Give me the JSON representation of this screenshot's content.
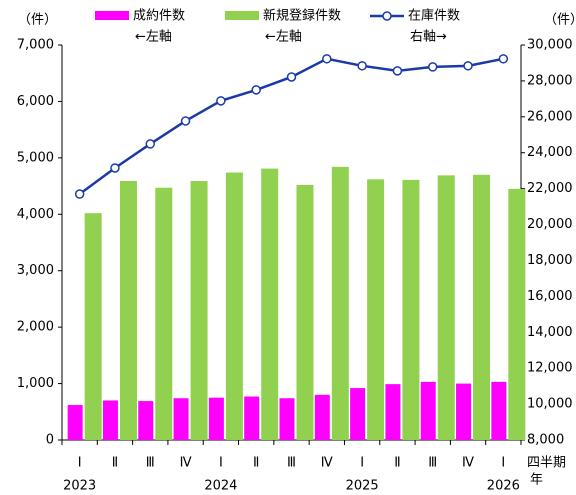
{
  "chart_data": {
    "type": "bar_line",
    "ylabel": "（件）",
    "y2label": "（件）",
    "xlabel": [
      "四半期",
      "年"
    ],
    "categories": [
      "Ⅰ",
      "Ⅱ",
      "Ⅲ",
      "Ⅳ",
      "Ⅰ",
      "Ⅱ",
      "Ⅲ",
      "Ⅳ",
      "Ⅰ",
      "Ⅱ",
      "Ⅲ",
      "Ⅳ",
      "Ⅰ"
    ],
    "years": [
      "2023",
      null,
      null,
      null,
      "2024",
      null,
      null,
      null,
      "2025",
      null,
      null,
      null,
      "2026"
    ],
    "series": [
      {
        "name": "成約件数",
        "axis_note": "←左軸",
        "type": "bar",
        "color": "#ff00ff",
        "values": [
          620,
          700,
          690,
          740,
          750,
          770,
          740,
          800,
          920,
          990,
          1030,
          1000,
          1030
        ]
      },
      {
        "name": "新規登録件数",
        "axis_note": "←左軸",
        "type": "bar",
        "color": "#92d050",
        "values": [
          4020,
          4590,
          4470,
          4590,
          4740,
          4810,
          4520,
          4840,
          4620,
          4610,
          4690,
          4700,
          4450
        ]
      },
      {
        "name": "在庫件数",
        "axis_note": "右軸→",
        "type": "line",
        "axis": "y2",
        "color": "#1a3aa8",
        "values": [
          21700,
          23150,
          24490,
          25770,
          26890,
          27500,
          28220,
          29230,
          28840,
          28560,
          28780,
          28840,
          29230
        ]
      }
    ],
    "ylim": [
      0,
      7000
    ],
    "yticks": [
      0,
      {
        "value": 1000,
        "label": "1,000"
      },
      {
        "value": 2000,
        "label": "2,000"
      },
      {
        "value": 3000,
        "label": "3,000"
      },
      {
        "value": 4000,
        "label": "4,000"
      },
      {
        "value": 5000,
        "label": "5,000"
      },
      {
        "value": 6000,
        "label": "6,000"
      },
      {
        "value": 7000,
        "label": "7,000"
      }
    ],
    "y2lim": [
      8000,
      30000
    ],
    "y2ticks": [
      {
        "value": 8000,
        "label": "8,000"
      },
      {
        "value": 10000,
        "label": "10,000"
      },
      {
        "value": 12000,
        "label": "12,000"
      },
      {
        "value": 14000,
        "label": "14,000"
      },
      {
        "value": 16000,
        "label": "16,000"
      },
      {
        "value": 18000,
        "label": "18,000"
      },
      {
        "value": 20000,
        "label": "20,000"
      },
      {
        "value": 22000,
        "label": "22,000"
      },
      {
        "value": 24000,
        "label": "24,000"
      },
      {
        "value": 26000,
        "label": "26,000"
      },
      {
        "value": 28000,
        "label": "28,000"
      },
      {
        "value": 30000,
        "label": "30,000"
      }
    ],
    "legend": "top",
    "grid": false
  }
}
